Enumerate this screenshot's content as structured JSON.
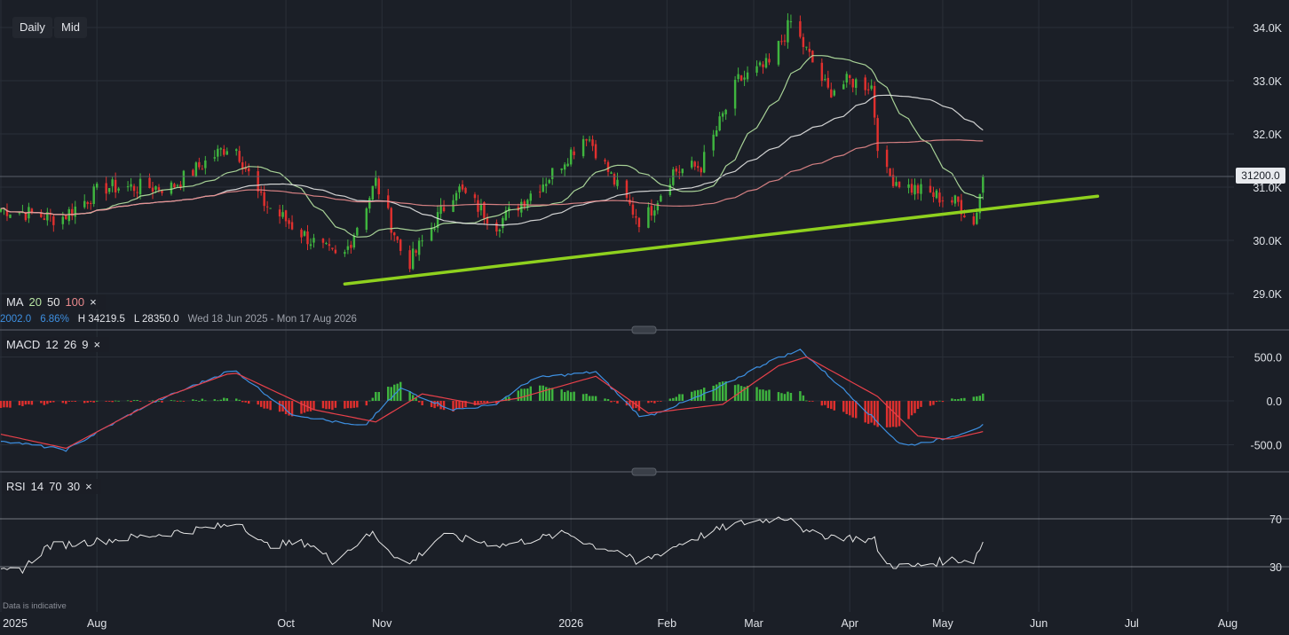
{
  "toolbar": {
    "interval": "Daily",
    "price_type": "Mid"
  },
  "indicators": {
    "ma": {
      "name": "MA",
      "p1": "20",
      "p2": "50",
      "p3": "100",
      "close": "×"
    },
    "macd": {
      "name": "MACD",
      "fast": "12",
      "slow": "26",
      "signal": "9",
      "close": "×"
    },
    "rsi": {
      "name": "RSI",
      "length": "14",
      "upper": "70",
      "lower": "30",
      "close": "×"
    }
  },
  "stats": {
    "change": "2002.0",
    "change_pct": "6.86%",
    "high": "H 34219.5",
    "low": "L 28350.0",
    "range": "Wed 18 Jun 2025 - Mon 17 Aug 2026"
  },
  "last_price": "31200.0",
  "disclaimer": "Data is indicative",
  "colors": {
    "bg": "#1b1f27",
    "up": "#3fb53f",
    "down": "#e0302e",
    "trendline": "#8fd11e",
    "ma20": "#b7e4a3",
    "ma50": "#e6e6e6",
    "ma100": "#e8898c",
    "macd": "#3d8fe0",
    "signal": "#e8404a",
    "rsi": "#e6e6e6"
  },
  "chart_data": [
    {
      "type": "candlestick",
      "x_ticks": [
        "2025",
        "Aug",
        "Oct",
        "Nov",
        "2026",
        "Feb",
        "Mar",
        "Apr",
        "May",
        "Jun",
        "Jul",
        "Aug"
      ],
      "y_ticks": [
        "34.0K",
        "33.0K",
        "32.0K",
        "31.0K",
        "30.0K",
        "29.0K"
      ],
      "ylim": [
        28800,
        34200
      ],
      "anchors": [
        [
          "2025-07-01",
          30600
        ],
        [
          "2025-07-20",
          30400
        ],
        [
          "2025-08-03",
          31000
        ],
        [
          "2025-08-25",
          31000
        ],
        [
          "2025-09-14",
          31850
        ],
        [
          "2025-09-23",
          30750
        ],
        [
          "2025-10-09",
          30000
        ],
        [
          "2025-10-19",
          29600
        ],
        [
          "2025-10-30",
          31100
        ],
        [
          "2025-11-09",
          29500
        ],
        [
          "2025-11-25",
          31000
        ],
        [
          "2025-12-08",
          30300
        ],
        [
          "2025-12-25",
          31200
        ],
        [
          "2026-01-06",
          32000
        ],
        [
          "2026-01-17",
          30900
        ],
        [
          "2026-01-24",
          30300
        ],
        [
          "2026-02-03",
          31300
        ],
        [
          "2026-02-12",
          31400
        ],
        [
          "2026-02-24",
          33000
        ],
        [
          "2026-03-06",
          33300
        ],
        [
          "2026-03-13",
          34100
        ],
        [
          "2026-03-25",
          32800
        ],
        [
          "2026-04-01",
          33000
        ],
        [
          "2026-04-08",
          32900
        ],
        [
          "2026-04-11",
          31300
        ],
        [
          "2026-04-20",
          31000
        ],
        [
          "2026-05-06",
          30700
        ],
        [
          "2026-05-11",
          30300
        ],
        [
          "2026-05-14",
          31200
        ]
      ],
      "trendline": [
        [
          "2025-10-20",
          29180
        ],
        [
          "2026-06-20",
          30830
        ]
      ],
      "last_price": 31200
    },
    {
      "type": "bar+line",
      "name": "MACD 12 26 9",
      "y_ticks": [
        "500.0",
        "0.0",
        "-500.0"
      ],
      "ylim": [
        -700,
        650
      ],
      "macd_anchors": [
        [
          "2025-07-01",
          -450
        ],
        [
          "2025-07-22",
          -560
        ],
        [
          "2025-08-17",
          -50
        ],
        [
          "2025-09-14",
          360
        ],
        [
          "2025-10-03",
          -150
        ],
        [
          "2025-10-26",
          -300
        ],
        [
          "2025-11-07",
          140
        ],
        [
          "2025-11-24",
          -100
        ],
        [
          "2025-12-07",
          -50
        ],
        [
          "2025-12-20",
          260
        ],
        [
          "2026-01-09",
          330
        ],
        [
          "2026-01-24",
          -200
        ],
        [
          "2026-02-15",
          100
        ],
        [
          "2026-03-06",
          450
        ],
        [
          "2026-03-16",
          580
        ],
        [
          "2026-04-03",
          0
        ],
        [
          "2026-04-18",
          -520
        ],
        [
          "2026-05-03",
          -420
        ],
        [
          "2026-05-14",
          -280
        ]
      ],
      "signal_anchors": [
        [
          "2025-07-01",
          -380
        ],
        [
          "2025-07-22",
          -540
        ],
        [
          "2025-08-21",
          20
        ],
        [
          "2025-09-14",
          330
        ],
        [
          "2025-10-10",
          -100
        ],
        [
          "2025-10-30",
          -240
        ],
        [
          "2025-11-14",
          80
        ],
        [
          "2025-12-02",
          -40
        ],
        [
          "2025-12-15",
          30
        ],
        [
          "2026-01-09",
          280
        ],
        [
          "2026-01-26",
          -140
        ],
        [
          "2026-02-19",
          -40
        ],
        [
          "2026-03-09",
          400
        ],
        [
          "2026-03-18",
          500
        ],
        [
          "2026-04-10",
          50
        ],
        [
          "2026-04-23",
          -400
        ],
        [
          "2026-05-03",
          -440
        ],
        [
          "2026-05-14",
          -350
        ]
      ]
    },
    {
      "type": "line",
      "name": "RSI 14",
      "y_ticks": [
        "70",
        "30"
      ],
      "ylim": [
        15,
        85
      ],
      "anchors": [
        [
          "2025-07-01",
          25
        ],
        [
          "2025-07-08",
          28
        ],
        [
          "2025-07-16",
          47
        ],
        [
          "2025-08-15",
          55
        ],
        [
          "2025-09-14",
          65
        ],
        [
          "2025-09-16",
          68
        ],
        [
          "2025-09-24",
          48
        ],
        [
          "2025-10-08",
          50
        ],
        [
          "2025-10-16",
          35
        ],
        [
          "2025-10-29",
          58
        ],
        [
          "2025-11-09",
          30
        ],
        [
          "2025-11-20",
          56
        ],
        [
          "2025-12-10",
          48
        ],
        [
          "2025-12-31",
          58
        ],
        [
          "2026-01-08",
          48
        ],
        [
          "2026-01-18",
          42
        ],
        [
          "2026-01-22",
          32
        ],
        [
          "2026-02-06",
          50
        ],
        [
          "2026-02-22",
          65
        ],
        [
          "2026-03-04",
          69
        ],
        [
          "2026-03-14",
          72
        ],
        [
          "2026-03-18",
          58
        ],
        [
          "2026-04-09",
          52
        ],
        [
          "2026-04-12",
          32
        ],
        [
          "2026-04-21",
          30
        ],
        [
          "2026-05-04",
          36
        ],
        [
          "2026-05-11",
          35
        ],
        [
          "2026-05-14",
          51
        ]
      ],
      "levels": [
        70,
        30
      ]
    }
  ]
}
